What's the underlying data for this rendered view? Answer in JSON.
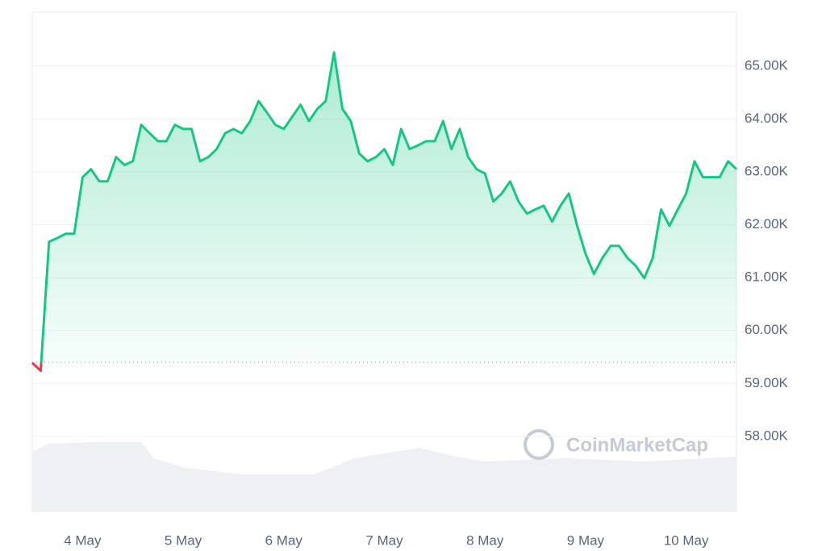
{
  "chart_data": {
    "type": "line",
    "categories": [
      null,
      null,
      null,
      null,
      null,
      null,
      "4 May",
      null,
      null,
      null,
      null,
      null,
      null,
      null,
      null,
      null,
      null,
      null,
      "5 May",
      null,
      null,
      null,
      null,
      null,
      null,
      null,
      null,
      null,
      null,
      null,
      "6 May",
      null,
      null,
      null,
      null,
      null,
      null,
      null,
      null,
      null,
      null,
      null,
      "7 May",
      null,
      null,
      null,
      null,
      null,
      null,
      null,
      null,
      null,
      null,
      null,
      "8 May",
      null,
      null,
      null,
      null,
      null,
      null,
      null,
      null,
      null,
      null,
      null,
      "9 May",
      null,
      null,
      null,
      null,
      null,
      null,
      null,
      null,
      null,
      null,
      null,
      "10 May",
      null,
      null,
      null,
      null,
      null,
      null
    ],
    "series": [
      {
        "color": "#16c784",
        "below_color": "#ea3943",
        "values": [
          59390,
          59240,
          61680,
          61750,
          61830,
          61830,
          62900,
          63050,
          62820,
          62820,
          63280,
          63130,
          63200,
          63890,
          63730,
          63580,
          63580,
          63890,
          63810,
          63810,
          63200,
          63280,
          63430,
          63730,
          63810,
          63730,
          63960,
          64340,
          64120,
          63890,
          63810,
          64040,
          64270,
          63960,
          64190,
          64340,
          65260,
          64190,
          63960,
          63350,
          63200,
          63280,
          63430,
          63130,
          63810,
          63430,
          63500,
          63580,
          63580,
          63960,
          63430,
          63810,
          63280,
          63050,
          62970,
          62440,
          62590,
          62820,
          62440,
          62210,
          62290,
          62360,
          62060,
          62360,
          62590,
          61980,
          61450,
          61070,
          61370,
          61600,
          61600,
          61370,
          61220,
          60990,
          61370,
          62290,
          61980,
          62290,
          62590,
          63200,
          62900,
          62900,
          62900,
          63200,
          63050
        ]
      }
    ],
    "baseline": 59400,
    "ylim": [
      56580,
      66020
    ],
    "yticks": [
      {
        "value": 65000,
        "label": "65.00K"
      },
      {
        "value": 64000,
        "label": "64.00K"
      },
      {
        "value": 63000,
        "label": "63.00K"
      },
      {
        "value": 62000,
        "label": "62.00K"
      },
      {
        "value": 61000,
        "label": "61.00K"
      },
      {
        "value": 60000,
        "label": "60.00K"
      },
      {
        "value": 59000,
        "label": "59.00K"
      },
      {
        "value": 58000,
        "label": "58.00K"
      }
    ],
    "grid": true,
    "watermark": "CoinMarketCap"
  }
}
